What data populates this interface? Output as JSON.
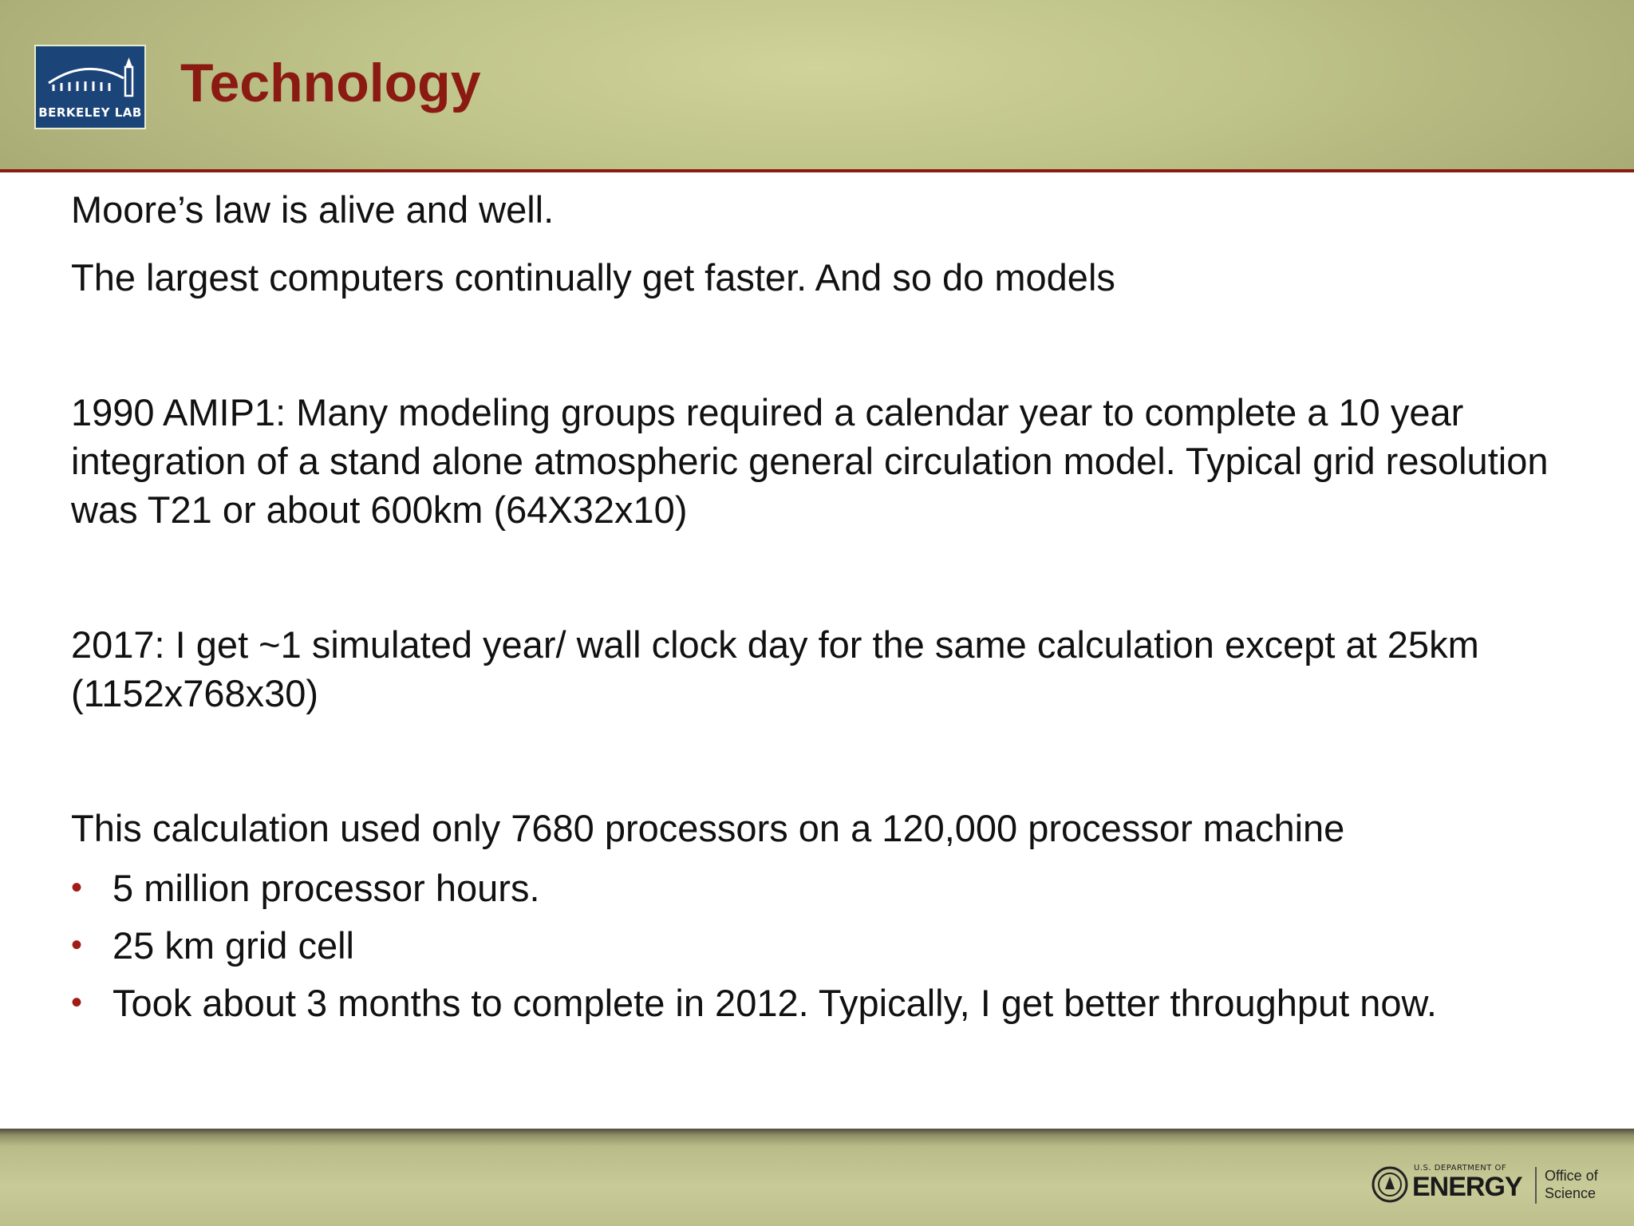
{
  "header": {
    "logo_text": "BERKELEY LAB",
    "title": "Technology"
  },
  "body": {
    "line1": "Moore’s law is alive and well.",
    "line2": "The largest computers continually get faster. And so do models",
    "para_1990": "1990 AMIP1: Many modeling groups required a calendar year to complete a 10 year integration of a stand alone atmospheric general circulation model. Typical grid resolution was T21 or about 600km (64X32x10)",
    "para_2017": "2017: I get ~1 simulated year/ wall clock day for the same calculation except at 25km (1152x768x30)",
    "calc_intro": "This calculation used only 7680 processors on a 120,000 processor machine",
    "bullets": [
      "5 million processor hours.",
      "25 km grid cell",
      "Took about 3 months to complete in 2012. Typically, I get better throughput now."
    ]
  },
  "footer": {
    "doe_small": "U.S. DEPARTMENT OF",
    "doe_big": "ENERGY",
    "office_line1": "Office of",
    "office_line2": "Science"
  },
  "colors": {
    "title": "#8b1a12",
    "rule": "#8a1a12",
    "bullet": "#a01c14",
    "logo_bg": "#1b4478"
  }
}
